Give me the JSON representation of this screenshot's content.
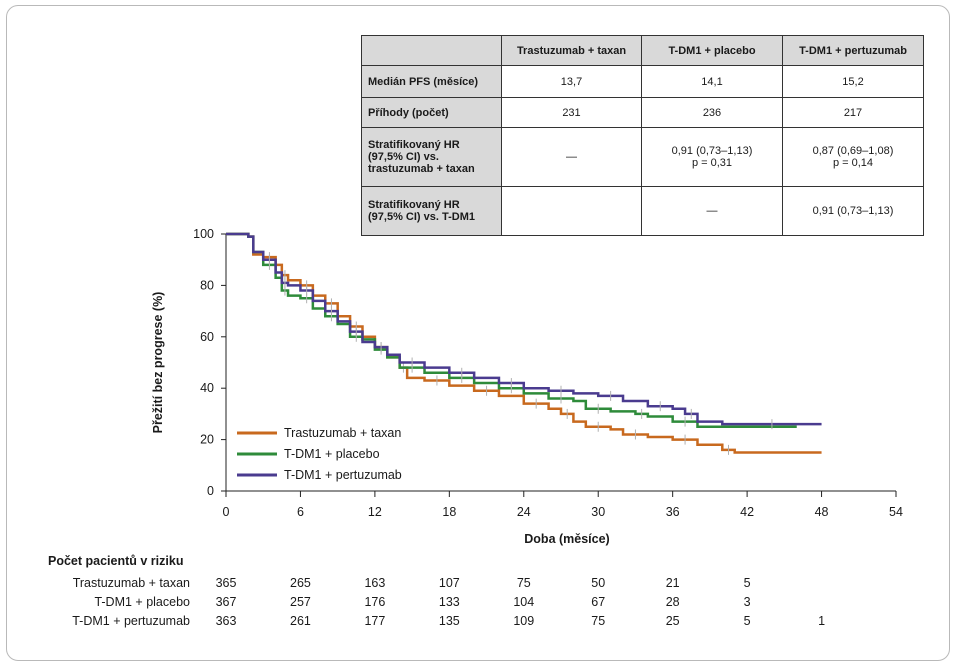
{
  "table": {
    "headers": [
      "",
      "Trastuzumab + taxan",
      "T-DM1 + placebo",
      "T-DM1 + pertuzumab"
    ],
    "rows": [
      {
        "label": "Medián PFS (měsíce)",
        "cells": [
          [
            "13,7"
          ],
          [
            "14,1"
          ],
          [
            "15,2"
          ]
        ]
      },
      {
        "label": "Příhody (počet)",
        "cells": [
          [
            "231"
          ],
          [
            "236"
          ],
          [
            "217"
          ]
        ]
      },
      {
        "label": "Stratifikovaný HR (97,5% CI) vs. trastuzumab + taxan",
        "cells": [
          [
            "—"
          ],
          [
            "0,91 (0,73–1,13)",
            "p = 0,31"
          ],
          [
            "0,87 (0,69–1,08)",
            "p = 0,14"
          ]
        ]
      },
      {
        "label": "Stratifikovaný HR (97,5% CI) vs. T-DM1",
        "cells": [
          [
            ""
          ],
          [
            "—"
          ],
          [
            "0,91 (0,73–1,13)"
          ]
        ]
      }
    ]
  },
  "chart_data": {
    "type": "line",
    "xlabel": "Doba (měsíce)",
    "ylabel": "Přežití bez progrese (%)",
    "xlim": [
      0,
      54
    ],
    "ylim": [
      0,
      100
    ],
    "xticks": [
      0,
      6,
      12,
      18,
      24,
      30,
      36,
      42,
      48,
      54
    ],
    "yticks": [
      0,
      20,
      40,
      60,
      80,
      100
    ],
    "legend_position": "bottom-left",
    "series": [
      {
        "name": "Trastuzumab + taxan",
        "color": "#c8691e",
        "points": [
          [
            0,
            100
          ],
          [
            1,
            100
          ],
          [
            1.8,
            99
          ],
          [
            2.2,
            92
          ],
          [
            3,
            91
          ],
          [
            4,
            88
          ],
          [
            4.5,
            84
          ],
          [
            5,
            82
          ],
          [
            6,
            80
          ],
          [
            7,
            76
          ],
          [
            8,
            73
          ],
          [
            9,
            68
          ],
          [
            10,
            64
          ],
          [
            11,
            60
          ],
          [
            12,
            56
          ],
          [
            13,
            52
          ],
          [
            14,
            48
          ],
          [
            14.6,
            44
          ],
          [
            16,
            43
          ],
          [
            18,
            41
          ],
          [
            20,
            39
          ],
          [
            22,
            37
          ],
          [
            24,
            34
          ],
          [
            26,
            32
          ],
          [
            27,
            30
          ],
          [
            28,
            27
          ],
          [
            29,
            25
          ],
          [
            31,
            24
          ],
          [
            32,
            22
          ],
          [
            34,
            21
          ],
          [
            36,
            20
          ],
          [
            38,
            18
          ],
          [
            40,
            16
          ],
          [
            41,
            15
          ],
          [
            48,
            15
          ]
        ]
      },
      {
        "name": "T-DM1 + placebo",
        "color": "#2e8b3a",
        "points": [
          [
            0,
            100
          ],
          [
            1,
            100
          ],
          [
            1.8,
            99
          ],
          [
            2.2,
            93
          ],
          [
            3,
            88
          ],
          [
            4,
            83
          ],
          [
            4.5,
            78
          ],
          [
            5,
            76
          ],
          [
            6,
            75
          ],
          [
            7,
            71
          ],
          [
            8,
            68
          ],
          [
            9,
            65
          ],
          [
            10,
            60
          ],
          [
            11,
            59
          ],
          [
            12,
            55
          ],
          [
            13,
            52
          ],
          [
            14,
            48
          ],
          [
            16,
            46
          ],
          [
            18,
            44
          ],
          [
            20,
            42
          ],
          [
            22,
            40
          ],
          [
            24,
            38
          ],
          [
            26,
            36
          ],
          [
            28,
            35
          ],
          [
            29,
            32
          ],
          [
            31,
            31
          ],
          [
            33,
            30
          ],
          [
            34,
            29
          ],
          [
            36,
            27
          ],
          [
            38,
            25
          ],
          [
            46,
            25
          ]
        ]
      },
      {
        "name": "T-DM1 + pertuzumab",
        "color": "#4a3b8f",
        "points": [
          [
            0,
            100
          ],
          [
            1,
            100
          ],
          [
            1.8,
            99
          ],
          [
            2.2,
            93
          ],
          [
            3,
            90
          ],
          [
            4,
            85
          ],
          [
            4.5,
            81
          ],
          [
            5,
            80
          ],
          [
            6,
            78
          ],
          [
            7,
            74
          ],
          [
            8,
            70
          ],
          [
            9,
            66
          ],
          [
            10,
            62
          ],
          [
            11,
            58
          ],
          [
            12,
            56
          ],
          [
            13,
            53
          ],
          [
            14,
            50
          ],
          [
            16,
            48
          ],
          [
            18,
            46
          ],
          [
            20,
            44
          ],
          [
            22,
            42
          ],
          [
            24,
            40
          ],
          [
            26,
            39
          ],
          [
            28,
            38
          ],
          [
            30,
            37
          ],
          [
            32,
            35
          ],
          [
            34,
            33
          ],
          [
            36,
            32
          ],
          [
            37,
            30
          ],
          [
            38,
            27
          ],
          [
            40,
            26
          ],
          [
            48,
            26
          ]
        ]
      }
    ]
  },
  "risk": {
    "title": "Počet pacientů v riziku",
    "times": [
      0,
      6,
      12,
      18,
      24,
      30,
      36,
      42,
      48
    ],
    "rows": [
      {
        "label": "Trastuzumab + taxan",
        "values": [
          "365",
          "265",
          "163",
          "107",
          "75",
          "50",
          "21",
          "5",
          ""
        ]
      },
      {
        "label": "T-DM1 + placebo",
        "values": [
          "367",
          "257",
          "176",
          "133",
          "104",
          "67",
          "28",
          "3",
          ""
        ]
      },
      {
        "label": "T-DM1 + pertuzumab",
        "values": [
          "363",
          "261",
          "177",
          "135",
          "109",
          "75",
          "25",
          "5",
          "1"
        ]
      }
    ]
  }
}
